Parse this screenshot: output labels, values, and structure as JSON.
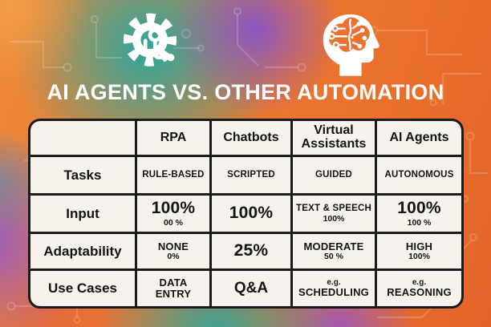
{
  "title": "AI AGENTS VS. OTHER AUTOMATION",
  "icons": {
    "left": "gear-circuit-icon",
    "right": "brain-circuit-icon"
  },
  "colors": {
    "teal": "#25a8a2",
    "purple": "#8e57c4",
    "orange": "#ea7a30",
    "icon_white": "#ffffff",
    "brain_orange": "#e97230",
    "table_background": "#f6f3ec",
    "table_border": "#1b1b1b",
    "table_text": "#141414",
    "title_text": "#ffffff"
  },
  "chart_data": {
    "type": "table",
    "title": "AI AGENTS VS. OTHER AUTOMATION",
    "columns": [
      "",
      "RPA",
      "Chatbots",
      "Virtual Assistants",
      "AI Agents"
    ],
    "rows": [
      {
        "label": "Tasks",
        "cells": [
          [
            {
              "text": "RULE-BASED",
              "style": "caps"
            }
          ],
          [
            {
              "text": "SCRIPTED",
              "style": "caps"
            }
          ],
          [
            {
              "text": "GUIDED",
              "style": "caps"
            }
          ],
          [
            {
              "text": "AUTONOMOUS",
              "style": "caps"
            }
          ]
        ]
      },
      {
        "label": "Input",
        "cells": [
          [
            {
              "text": "100%",
              "style": "big"
            },
            {
              "text": "00 %",
              "style": "sub"
            }
          ],
          [
            {
              "text": "100%",
              "style": "big"
            }
          ],
          [
            {
              "text": "TEXT & SPEECH",
              "style": "caps"
            },
            {
              "text": "100%",
              "style": "sub"
            }
          ],
          [
            {
              "text": "100%",
              "style": "big"
            },
            {
              "text": "100 %",
              "style": "sub"
            }
          ]
        ]
      },
      {
        "label": "Adaptability",
        "cells": [
          [
            {
              "text": "NONE",
              "style": "capslg"
            },
            {
              "text": "0%",
              "style": "sub"
            }
          ],
          [
            {
              "text": "25%",
              "style": "big"
            }
          ],
          [
            {
              "text": "MODERATE",
              "style": "capslg"
            },
            {
              "text": "50 %",
              "style": "sub"
            }
          ],
          [
            {
              "text": "HIGH",
              "style": "capslg"
            },
            {
              "text": "100%",
              "style": "sub"
            }
          ]
        ]
      },
      {
        "label": "Use Cases",
        "cells": [
          [
            {
              "text": "DATA",
              "style": "capslg"
            },
            {
              "text": "ENTRY",
              "style": "capslg"
            }
          ],
          [
            {
              "text": "Q&A",
              "style": "qa"
            }
          ],
          [
            {
              "text": "e.g.",
              "style": "eg"
            },
            {
              "text": "SCHEDULING",
              "style": "capslg"
            }
          ],
          [
            {
              "text": "e.g.",
              "style": "eg"
            },
            {
              "text": "REASONING",
              "style": "capslg"
            }
          ]
        ]
      }
    ]
  }
}
